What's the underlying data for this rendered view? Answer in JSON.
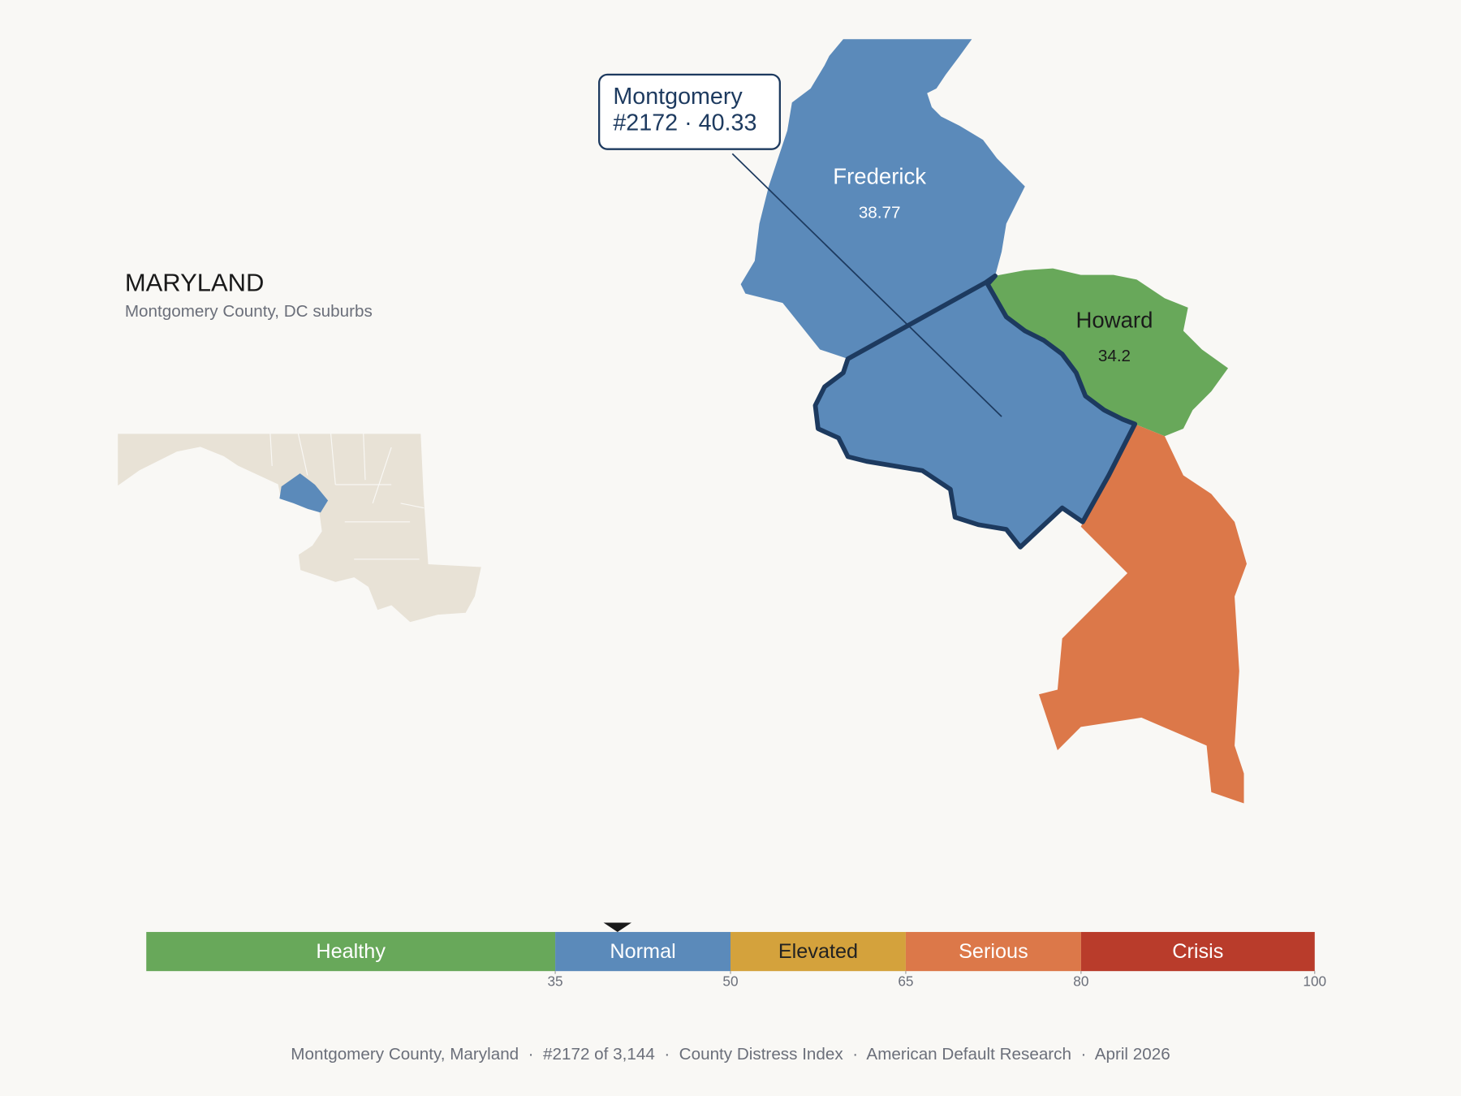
{
  "header": {
    "title": "MARYLAND",
    "subtitle": "Montgomery County, DC suburbs"
  },
  "regions": [
    {
      "name": "Frederick",
      "value": 38.77
    },
    {
      "name": "Howard",
      "value": 34.2
    },
    {
      "name": "Montgomery",
      "value": 40.33
    }
  ],
  "callout": {
    "lines": [
      "Montgomery",
      "#2172 · 40.33"
    ]
  },
  "scale": {
    "xlim": [
      0,
      100
    ],
    "xticks": [
      35,
      50,
      65,
      80,
      100
    ],
    "marker": 40.33,
    "segments": [
      {
        "name": "Healthy",
        "range": [
          0,
          35
        ],
        "color": "#68a85a",
        "text_color": "#ffffff"
      },
      {
        "name": "Normal",
        "range": [
          35,
          50
        ],
        "color": "#5b8aba",
        "text_color": "#ffffff"
      },
      {
        "name": "Elevated",
        "range": [
          50,
          65
        ],
        "color": "#d4a23c",
        "text_color": "#222222"
      },
      {
        "name": "Serious",
        "range": [
          65,
          80
        ],
        "color": "#dc7849",
        "text_color": "#ffffff"
      },
      {
        "name": "Crisis",
        "range": [
          80,
          100
        ],
        "color": "#b93c2b",
        "text_color": "#ffffff"
      }
    ]
  },
  "footer": "Montgomery County, Maryland  ·  #2172 of 3,144  ·  County Distress Index  ·  American Default Research  ·  April 2026"
}
